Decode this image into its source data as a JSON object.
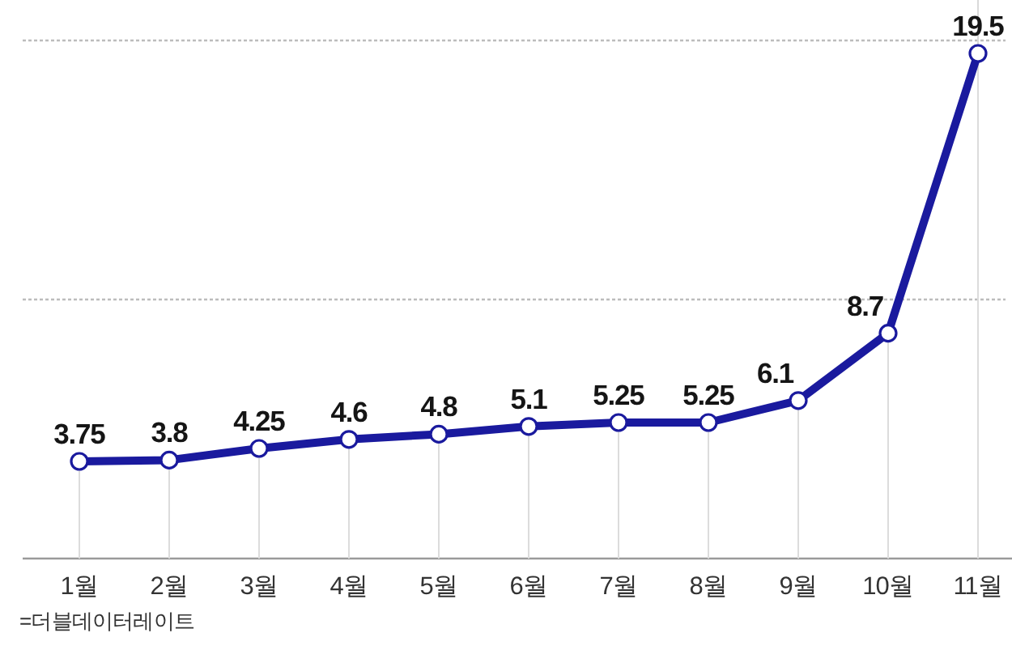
{
  "chart_data": {
    "type": "line",
    "categories": [
      "1월",
      "2월",
      "3월",
      "4월",
      "5월",
      "6월",
      "7월",
      "8월",
      "9월",
      "10월",
      "11월"
    ],
    "series": [
      {
        "color": "#1a1a9e",
        "values": [
          3.75,
          3.8,
          4.25,
          4.6,
          4.8,
          5.1,
          5.25,
          5.25,
          6.1,
          8.7,
          19.5
        ]
      }
    ],
    "ref_lines": [
      {
        "axis": "y",
        "value": 10,
        "color": "#bcbcbc",
        "line_style": "dotted"
      },
      {
        "axis": "y",
        "value": 20,
        "color": "#bcbcbc",
        "line_style": "dotted"
      },
      {
        "axis": "x",
        "value": "11월",
        "color": "#d9d9d9"
      }
    ],
    "marker": "circle",
    "line_style": "solid",
    "data_labels": true,
    "annotations": [
      "=더블데이터레이트"
    ]
  }
}
